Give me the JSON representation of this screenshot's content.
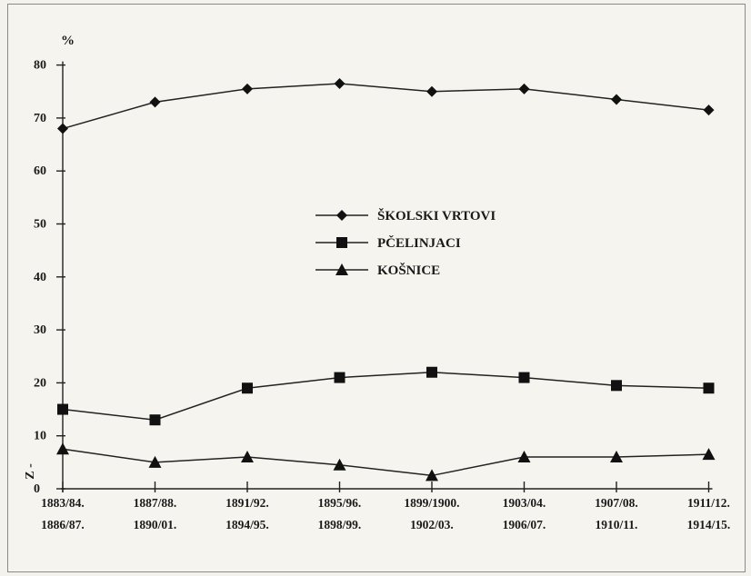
{
  "chart_data": {
    "type": "line",
    "title": "",
    "ylabel": "%",
    "ylim": [
      0,
      80
    ],
    "yticks": [
      0,
      10,
      20,
      30,
      40,
      50,
      60,
      70,
      80
    ],
    "grid": false,
    "legend_position": "center",
    "categories": [
      [
        "1883/84.",
        "1886/87."
      ],
      [
        "1887/88.",
        "1890/01."
      ],
      [
        "1891/92.",
        "1894/95."
      ],
      [
        "1895/96.",
        "1898/99."
      ],
      [
        "1899/1900.",
        "1902/03."
      ],
      [
        "1903/04.",
        "1906/07."
      ],
      [
        "1907/08.",
        "1910/11."
      ],
      [
        "1911/12.",
        "1914/15."
      ]
    ],
    "series": [
      {
        "name": "ŠKOLSKI VRTOVI",
        "marker": "diamond",
        "values": [
          68,
          73,
          75.5,
          76.5,
          75,
          75.5,
          73.5,
          71.5
        ]
      },
      {
        "name": "PČELINJACI",
        "marker": "square",
        "values": [
          15,
          13,
          19,
          21,
          22,
          21,
          19.5,
          19
        ]
      },
      {
        "name": "KOŠNICE",
        "marker": "triangle",
        "values": [
          7.5,
          5,
          6,
          4.5,
          2.5,
          6,
          6,
          6.5
        ]
      }
    ],
    "annotations": [
      "Z -"
    ]
  }
}
